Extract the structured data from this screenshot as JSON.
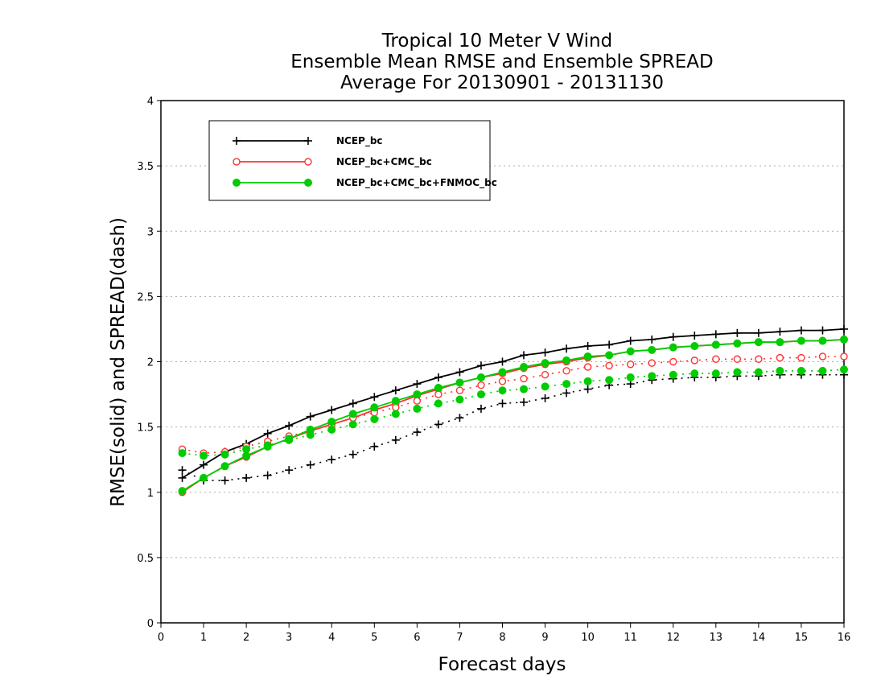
{
  "chart_data": {
    "type": "line",
    "title": [
      "Tropical 10 Meter V Wind",
      "Ensemble Mean RMSE and Ensemble SPREAD",
      "Average For 20130901 - 20131130"
    ],
    "xlabel": "Forecast days",
    "ylabel": "RMSE(solid) and SPREAD(dash)",
    "xlim": [
      0,
      16
    ],
    "ylim": [
      0,
      4
    ],
    "x_ticks": [
      "0",
      "1",
      "2",
      "3",
      "4",
      "5",
      "6",
      "7",
      "8",
      "9",
      "10",
      "11",
      "12",
      "13",
      "14",
      "15",
      "16"
    ],
    "y_ticks": [
      "0",
      "0.5",
      "1",
      "1.5",
      "2",
      "2.5",
      "3",
      "3.5",
      "4"
    ],
    "grid": "horizontal dotted",
    "legend_position": "top-left",
    "x": [
      0.5,
      1,
      1.5,
      2,
      2.5,
      3,
      3.5,
      4,
      4.5,
      5,
      5.5,
      6,
      6.5,
      7,
      7.5,
      8,
      8.5,
      9,
      9.5,
      10,
      10.5,
      11,
      11.5,
      12,
      12.5,
      13,
      13.5,
      14,
      14.5,
      15,
      15.5,
      16
    ],
    "series": [
      {
        "name": "NCEP_bc",
        "color": "#000000",
        "marker": "plus",
        "rmse": [
          1.11,
          1.21,
          1.31,
          1.37,
          1.45,
          1.51,
          1.58,
          1.63,
          1.68,
          1.73,
          1.78,
          1.83,
          1.88,
          1.92,
          1.97,
          2.0,
          2.05,
          2.07,
          2.1,
          2.12,
          2.13,
          2.16,
          2.17,
          2.19,
          2.2,
          2.21,
          2.22,
          2.22,
          2.23,
          2.24,
          2.24,
          2.25
        ],
        "spread": [
          1.17,
          1.09,
          1.09,
          1.11,
          1.13,
          1.17,
          1.21,
          1.25,
          1.29,
          1.35,
          1.4,
          1.46,
          1.52,
          1.57,
          1.64,
          1.68,
          1.69,
          1.72,
          1.76,
          1.79,
          1.82,
          1.83,
          1.86,
          1.87,
          1.88,
          1.88,
          1.89,
          1.89,
          1.9,
          1.9,
          1.9,
          1.9
        ]
      },
      {
        "name": "NCEP_bc+CMC_bc",
        "color": "#ff3333",
        "marker": "open-circle",
        "rmse": [
          1.0,
          1.11,
          1.2,
          1.27,
          1.35,
          1.41,
          1.47,
          1.52,
          1.57,
          1.63,
          1.68,
          1.74,
          1.79,
          1.84,
          1.88,
          1.91,
          1.95,
          1.98,
          2.0,
          2.03,
          2.05,
          2.08,
          2.09,
          2.11,
          2.12,
          2.13,
          2.14,
          2.15,
          2.15,
          2.16,
          2.16,
          2.17
        ],
        "spread": [
          1.33,
          1.3,
          1.31,
          1.35,
          1.39,
          1.43,
          1.47,
          1.52,
          1.57,
          1.61,
          1.65,
          1.7,
          1.75,
          1.78,
          1.82,
          1.85,
          1.87,
          1.9,
          1.93,
          1.96,
          1.97,
          1.98,
          1.99,
          2.0,
          2.01,
          2.02,
          2.02,
          2.02,
          2.03,
          2.03,
          2.04,
          2.04
        ]
      },
      {
        "name": "NCEP_bc+CMC_bc+FNMOC_bc",
        "color": "#00cc00",
        "marker": "filled-circle",
        "rmse": [
          1.01,
          1.11,
          1.2,
          1.28,
          1.35,
          1.41,
          1.48,
          1.54,
          1.6,
          1.65,
          1.7,
          1.75,
          1.8,
          1.84,
          1.88,
          1.92,
          1.96,
          1.99,
          2.01,
          2.04,
          2.05,
          2.08,
          2.09,
          2.11,
          2.12,
          2.13,
          2.14,
          2.15,
          2.15,
          2.16,
          2.16,
          2.17
        ],
        "spread": [
          1.3,
          1.28,
          1.29,
          1.33,
          1.36,
          1.4,
          1.44,
          1.48,
          1.52,
          1.56,
          1.6,
          1.64,
          1.68,
          1.71,
          1.75,
          1.78,
          1.79,
          1.81,
          1.83,
          1.85,
          1.86,
          1.88,
          1.89,
          1.9,
          1.91,
          1.91,
          1.92,
          1.92,
          1.93,
          1.93,
          1.93,
          1.94
        ]
      }
    ]
  }
}
